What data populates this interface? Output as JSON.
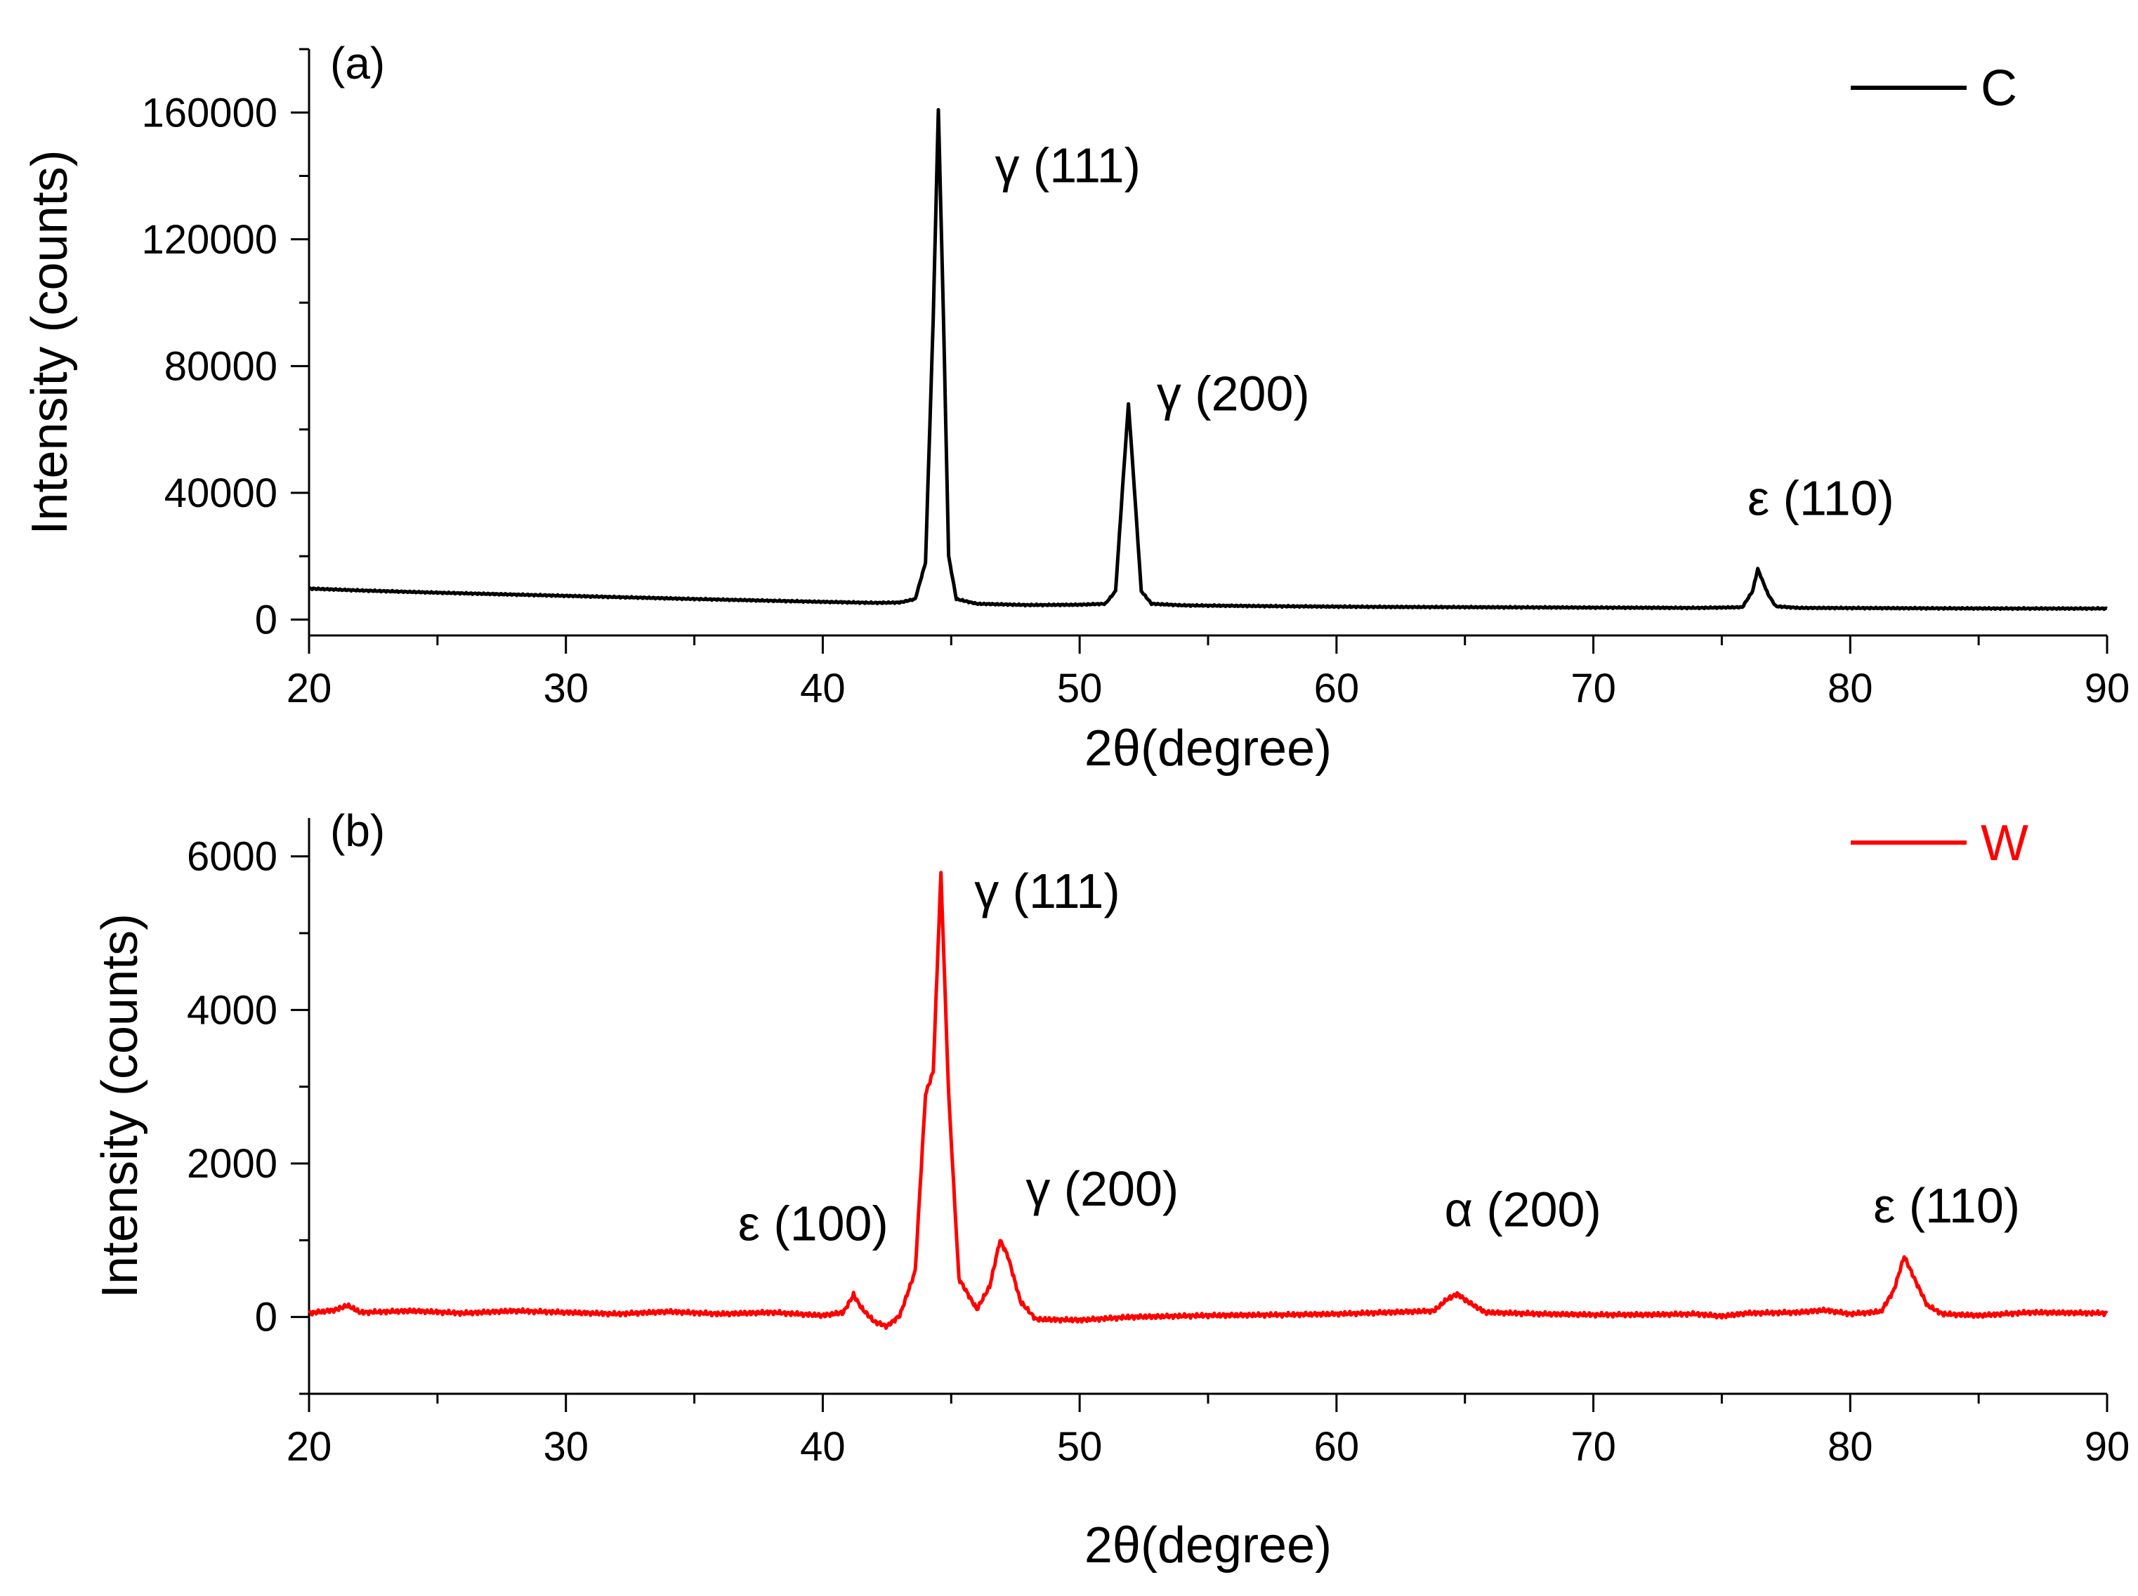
{
  "chart_data": [
    {
      "panel_label": "(a)",
      "type": "line",
      "xlabel": "2θ(degree)",
      "ylabel": "Intensity (counts)",
      "xlim": [
        20,
        90
      ],
      "ylim": [
        -5000,
        180000
      ],
      "x_ticks": [
        20,
        30,
        40,
        50,
        60,
        70,
        80,
        90
      ],
      "y_ticks": [
        0,
        40000,
        80000,
        120000,
        160000
      ],
      "legend": "top-right",
      "series": [
        {
          "name": "C",
          "color": "#000000",
          "points": [
            [
              20,
              9800
            ],
            [
              22,
              9200
            ],
            [
              25,
              8500
            ],
            [
              30,
              7500
            ],
            [
              35,
              6500
            ],
            [
              40,
              5600
            ],
            [
              42,
              5300
            ],
            [
              43,
              5400
            ],
            [
              43.6,
              6500
            ],
            [
              44.0,
              18000
            ],
            [
              44.3,
              95000
            ],
            [
              44.5,
              161000
            ],
            [
              44.7,
              95000
            ],
            [
              44.9,
              20000
            ],
            [
              45.2,
              6500
            ],
            [
              46,
              5000
            ],
            [
              48,
              4600
            ],
            [
              50,
              4700
            ],
            [
              51,
              5000
            ],
            [
              51.4,
              9000
            ],
            [
              51.7,
              45000
            ],
            [
              51.9,
              68000
            ],
            [
              52.1,
              45000
            ],
            [
              52.4,
              9000
            ],
            [
              52.8,
              5000
            ],
            [
              54,
              4500
            ],
            [
              58,
              4200
            ],
            [
              62,
              4000
            ],
            [
              66,
              3900
            ],
            [
              70,
              3800
            ],
            [
              74,
              3700
            ],
            [
              75.8,
              3900
            ],
            [
              76.2,
              9000
            ],
            [
              76.4,
              16000
            ],
            [
              76.6,
              12000
            ],
            [
              76.8,
              8000
            ],
            [
              77.1,
              4200
            ],
            [
              78,
              3700
            ],
            [
              82,
              3600
            ],
            [
              86,
              3500
            ],
            [
              90,
              3500
            ]
          ]
        }
      ],
      "annotations": [
        {
          "text": "γ (111)",
          "x": 46.7,
          "y": 138000
        },
        {
          "text": "γ (200)",
          "x": 53.0,
          "y": 66000
        },
        {
          "text": "ε (110)",
          "x": 76.0,
          "y": 33000
        }
      ]
    },
    {
      "panel_label": "(b)",
      "type": "line",
      "xlabel": "2θ(degree)",
      "ylabel": "Intensity (counts)",
      "xlim": [
        20,
        90
      ],
      "ylim": [
        -1000,
        6500
      ],
      "x_ticks": [
        20,
        30,
        40,
        50,
        60,
        70,
        80,
        90
      ],
      "y_ticks": [
        0,
        2000,
        4000,
        6000
      ],
      "legend": "top-right",
      "series": [
        {
          "name": "W",
          "color": "#ff0000",
          "points": [
            [
              20,
              50
            ],
            [
              21,
              90
            ],
            [
              21.5,
              150
            ],
            [
              22,
              60
            ],
            [
              24,
              80
            ],
            [
              26,
              50
            ],
            [
              28,
              80
            ],
            [
              30,
              60
            ],
            [
              32,
              40
            ],
            [
              34,
              70
            ],
            [
              36,
              40
            ],
            [
              38,
              60
            ],
            [
              40,
              20
            ],
            [
              40.8,
              60
            ],
            [
              41.2,
              290
            ],
            [
              41.5,
              120
            ],
            [
              42,
              -60
            ],
            [
              42.5,
              -120
            ],
            [
              43,
              20
            ],
            [
              43.6,
              600
            ],
            [
              44.0,
              2900
            ],
            [
              44.3,
              3200
            ],
            [
              44.6,
              5780
            ],
            [
              44.9,
              2900
            ],
            [
              45.3,
              500
            ],
            [
              46.0,
              100
            ],
            [
              46.5,
              400
            ],
            [
              46.9,
              1000
            ],
            [
              47.2,
              800
            ],
            [
              47.7,
              200
            ],
            [
              48.3,
              -30
            ],
            [
              50,
              -40
            ],
            [
              52,
              0
            ],
            [
              55,
              20
            ],
            [
              58,
              30
            ],
            [
              60,
              40
            ],
            [
              62,
              60
            ],
            [
              63.8,
              80
            ],
            [
              64.3,
              230
            ],
            [
              64.7,
              300
            ],
            [
              65.2,
              180
            ],
            [
              65.8,
              60
            ],
            [
              68,
              40
            ],
            [
              70,
              30
            ],
            [
              72,
              30
            ],
            [
              74,
              40
            ],
            [
              75,
              10
            ],
            [
              76,
              50
            ],
            [
              78,
              60
            ],
            [
              79,
              90
            ],
            [
              80,
              40
            ],
            [
              81.2,
              70
            ],
            [
              81.7,
              350
            ],
            [
              82.1,
              790
            ],
            [
              82.5,
              500
            ],
            [
              83.0,
              150
            ],
            [
              83.6,
              40
            ],
            [
              85,
              20
            ],
            [
              87,
              60
            ],
            [
              90,
              50
            ]
          ]
        }
      ],
      "annotations": [
        {
          "text": "ε (100)",
          "x": 36.7,
          "y": 1000
        },
        {
          "text": "γ (111)",
          "x": 45.9,
          "y": 5330
        },
        {
          "text": "γ (200)",
          "x": 47.9,
          "y": 1450
        },
        {
          "text": "α (200)",
          "x": 64.2,
          "y": 1180
        },
        {
          "text": "ε (110)",
          "x": 80.9,
          "y": 1230
        }
      ]
    }
  ]
}
